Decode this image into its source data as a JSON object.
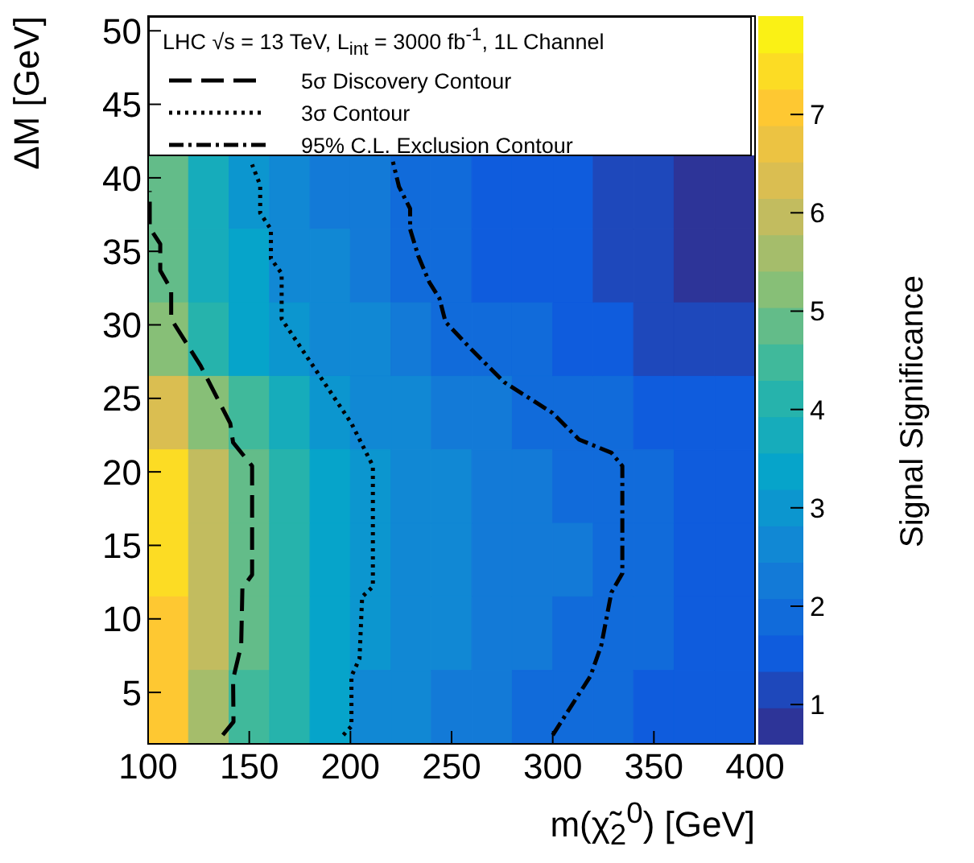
{
  "chart_data": {
    "type": "heatmap",
    "xlabel": "m(χ̃$_{2}$$^{0}$) [GeV]",
    "ylabel": "ΔM [GeV]",
    "clabel": "Signal Significance",
    "legend_title": "LHC √s = 13 TeV, L$_{int}$ = 3000 fb$^{-1}$, 1L Channel",
    "legend": "top left",
    "marker": "none",
    "xlim": [
      100,
      400
    ],
    "xticks": [
      100,
      150,
      200,
      250,
      300,
      350,
      400
    ],
    "ylim": [
      1.5,
      51
    ],
    "yticks": [
      5,
      10,
      15,
      20,
      25,
      30,
      35,
      40,
      45,
      50
    ],
    "clim": [
      0.6,
      8.0
    ],
    "cticks": [
      1,
      2,
      3,
      4,
      5,
      6,
      7
    ],
    "x": [
      110,
      130,
      150,
      170,
      190,
      210,
      230,
      250,
      270,
      290,
      310,
      330,
      350,
      370,
      390
    ],
    "y": [
      39,
      34,
      29,
      24,
      19,
      14,
      9,
      4
    ],
    "cells": [
      [
        4.7,
        3.8,
        3.1,
        2.7,
        2.4,
        2.1,
        1.95,
        1.8,
        1.65,
        1.5,
        1.35,
        1.2,
        1.05,
        0.9,
        0.7
      ],
      [
        4.8,
        3.9,
        3.2,
        2.8,
        2.5,
        2.25,
        2.02,
        1.85,
        1.7,
        1.55,
        1.4,
        1.25,
        1.1,
        0.95,
        0.8
      ],
      [
        5.1,
        4.3,
        3.5,
        3.05,
        2.7,
        2.45,
        2.2,
        2.05,
        1.9,
        1.75,
        1.6,
        1.45,
        1.3,
        1.15,
        1.0
      ],
      [
        6.3,
        5.3,
        4.5,
        3.7,
        3.1,
        2.75,
        2.5,
        2.3,
        2.15,
        2.05,
        1.95,
        1.8,
        1.65,
        1.5,
        1.35
      ],
      [
        7.3,
        6.0,
        4.95,
        4.25,
        3.45,
        2.98,
        2.7,
        2.5,
        2.3,
        2.18,
        2.08,
        2.02,
        1.85,
        1.7,
        1.5
      ],
      [
        7.4,
        6.1,
        4.95,
        4.3,
        3.5,
        3.0,
        2.75,
        2.55,
        2.35,
        2.2,
        2.1,
        2.02,
        1.85,
        1.7,
        1.55
      ],
      [
        7.2,
        5.8,
        4.8,
        4.2,
        3.4,
        2.95,
        2.65,
        2.45,
        2.3,
        2.2,
        2.08,
        1.95,
        1.8,
        1.65,
        1.5
      ],
      [
        7.0,
        5.6,
        4.6,
        4.0,
        3.3,
        2.8,
        2.5,
        2.3,
        2.15,
        2.05,
        1.95,
        1.8,
        1.65,
        1.5,
        1.35
      ]
    ],
    "series": [
      {
        "name": "5σ Discovery Contour",
        "type": "line",
        "color": "#000000",
        "line_style": "dashed",
        "x": [
          136.9,
          142.2,
          142,
          146,
          146.6,
          151.4,
          151.4,
          142,
          140.6,
          126,
          111.4,
          111.4,
          106,
          106,
          100.8,
          100.8
        ],
        "values": [
          2.1,
          3.0,
          5.9,
          8.2,
          12.1,
          13.0,
          20.4,
          22,
          23.3,
          27.2,
          30.4,
          32.4,
          33.7,
          35.5,
          36.6,
          39.1
        ]
      },
      {
        "name": "3σ Contour",
        "type": "line",
        "color": "#000000",
        "line_style": "dotted",
        "x": [
          196.5,
          200.5,
          200.5,
          204.5,
          205.8,
          211.1,
          211.1,
          200.5,
          166,
          166,
          160.7,
          160.7,
          155.4,
          155.4,
          151.4
        ],
        "values": [
          2.1,
          2.7,
          6.1,
          7.3,
          11.5,
          12.2,
          20.4,
          23.3,
          30.4,
          33.5,
          34.5,
          36.5,
          37.6,
          39.5,
          40.9
        ]
      },
      {
        "name": "95% C.L. Exclusion Contour",
        "type": "line",
        "color": "#000000",
        "line_style": "dashdot",
        "x": [
          300,
          318.6,
          324,
          329,
          334.4,
          334.4,
          329,
          313,
          300,
          276,
          260,
          247,
          244,
          239,
          233.5,
          229.5,
          229.5,
          224,
          221
        ],
        "values": [
          2.1,
          6.1,
          8.2,
          11.8,
          13.1,
          20.4,
          21.3,
          22.2,
          24,
          26.1,
          28.3,
          30.2,
          31.8,
          32.9,
          34.7,
          36.5,
          37.9,
          39.4,
          41.1
        ]
      }
    ]
  }
}
